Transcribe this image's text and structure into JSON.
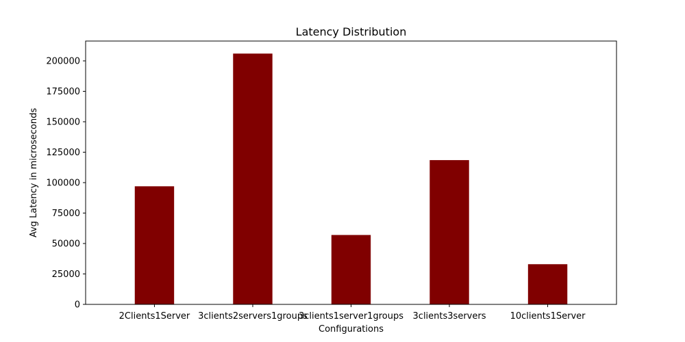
{
  "chart_data": {
    "type": "bar",
    "title": "Latency Distribution",
    "xlabel": "Configurations",
    "ylabel": "Avg Latency in microseconds",
    "categories": [
      "2Clients1Server",
      "3clients2servers1groups",
      "3clients1server1groups",
      "3clients3servers",
      "10clients1Server"
    ],
    "values": [
      97000,
      206000,
      57000,
      118500,
      33000
    ],
    "ylim": [
      0,
      216300
    ],
    "yticks": [
      0,
      25000,
      50000,
      75000,
      100000,
      125000,
      150000,
      175000,
      200000
    ],
    "bar_color": "#800000",
    "grid": false,
    "legend": false
  }
}
